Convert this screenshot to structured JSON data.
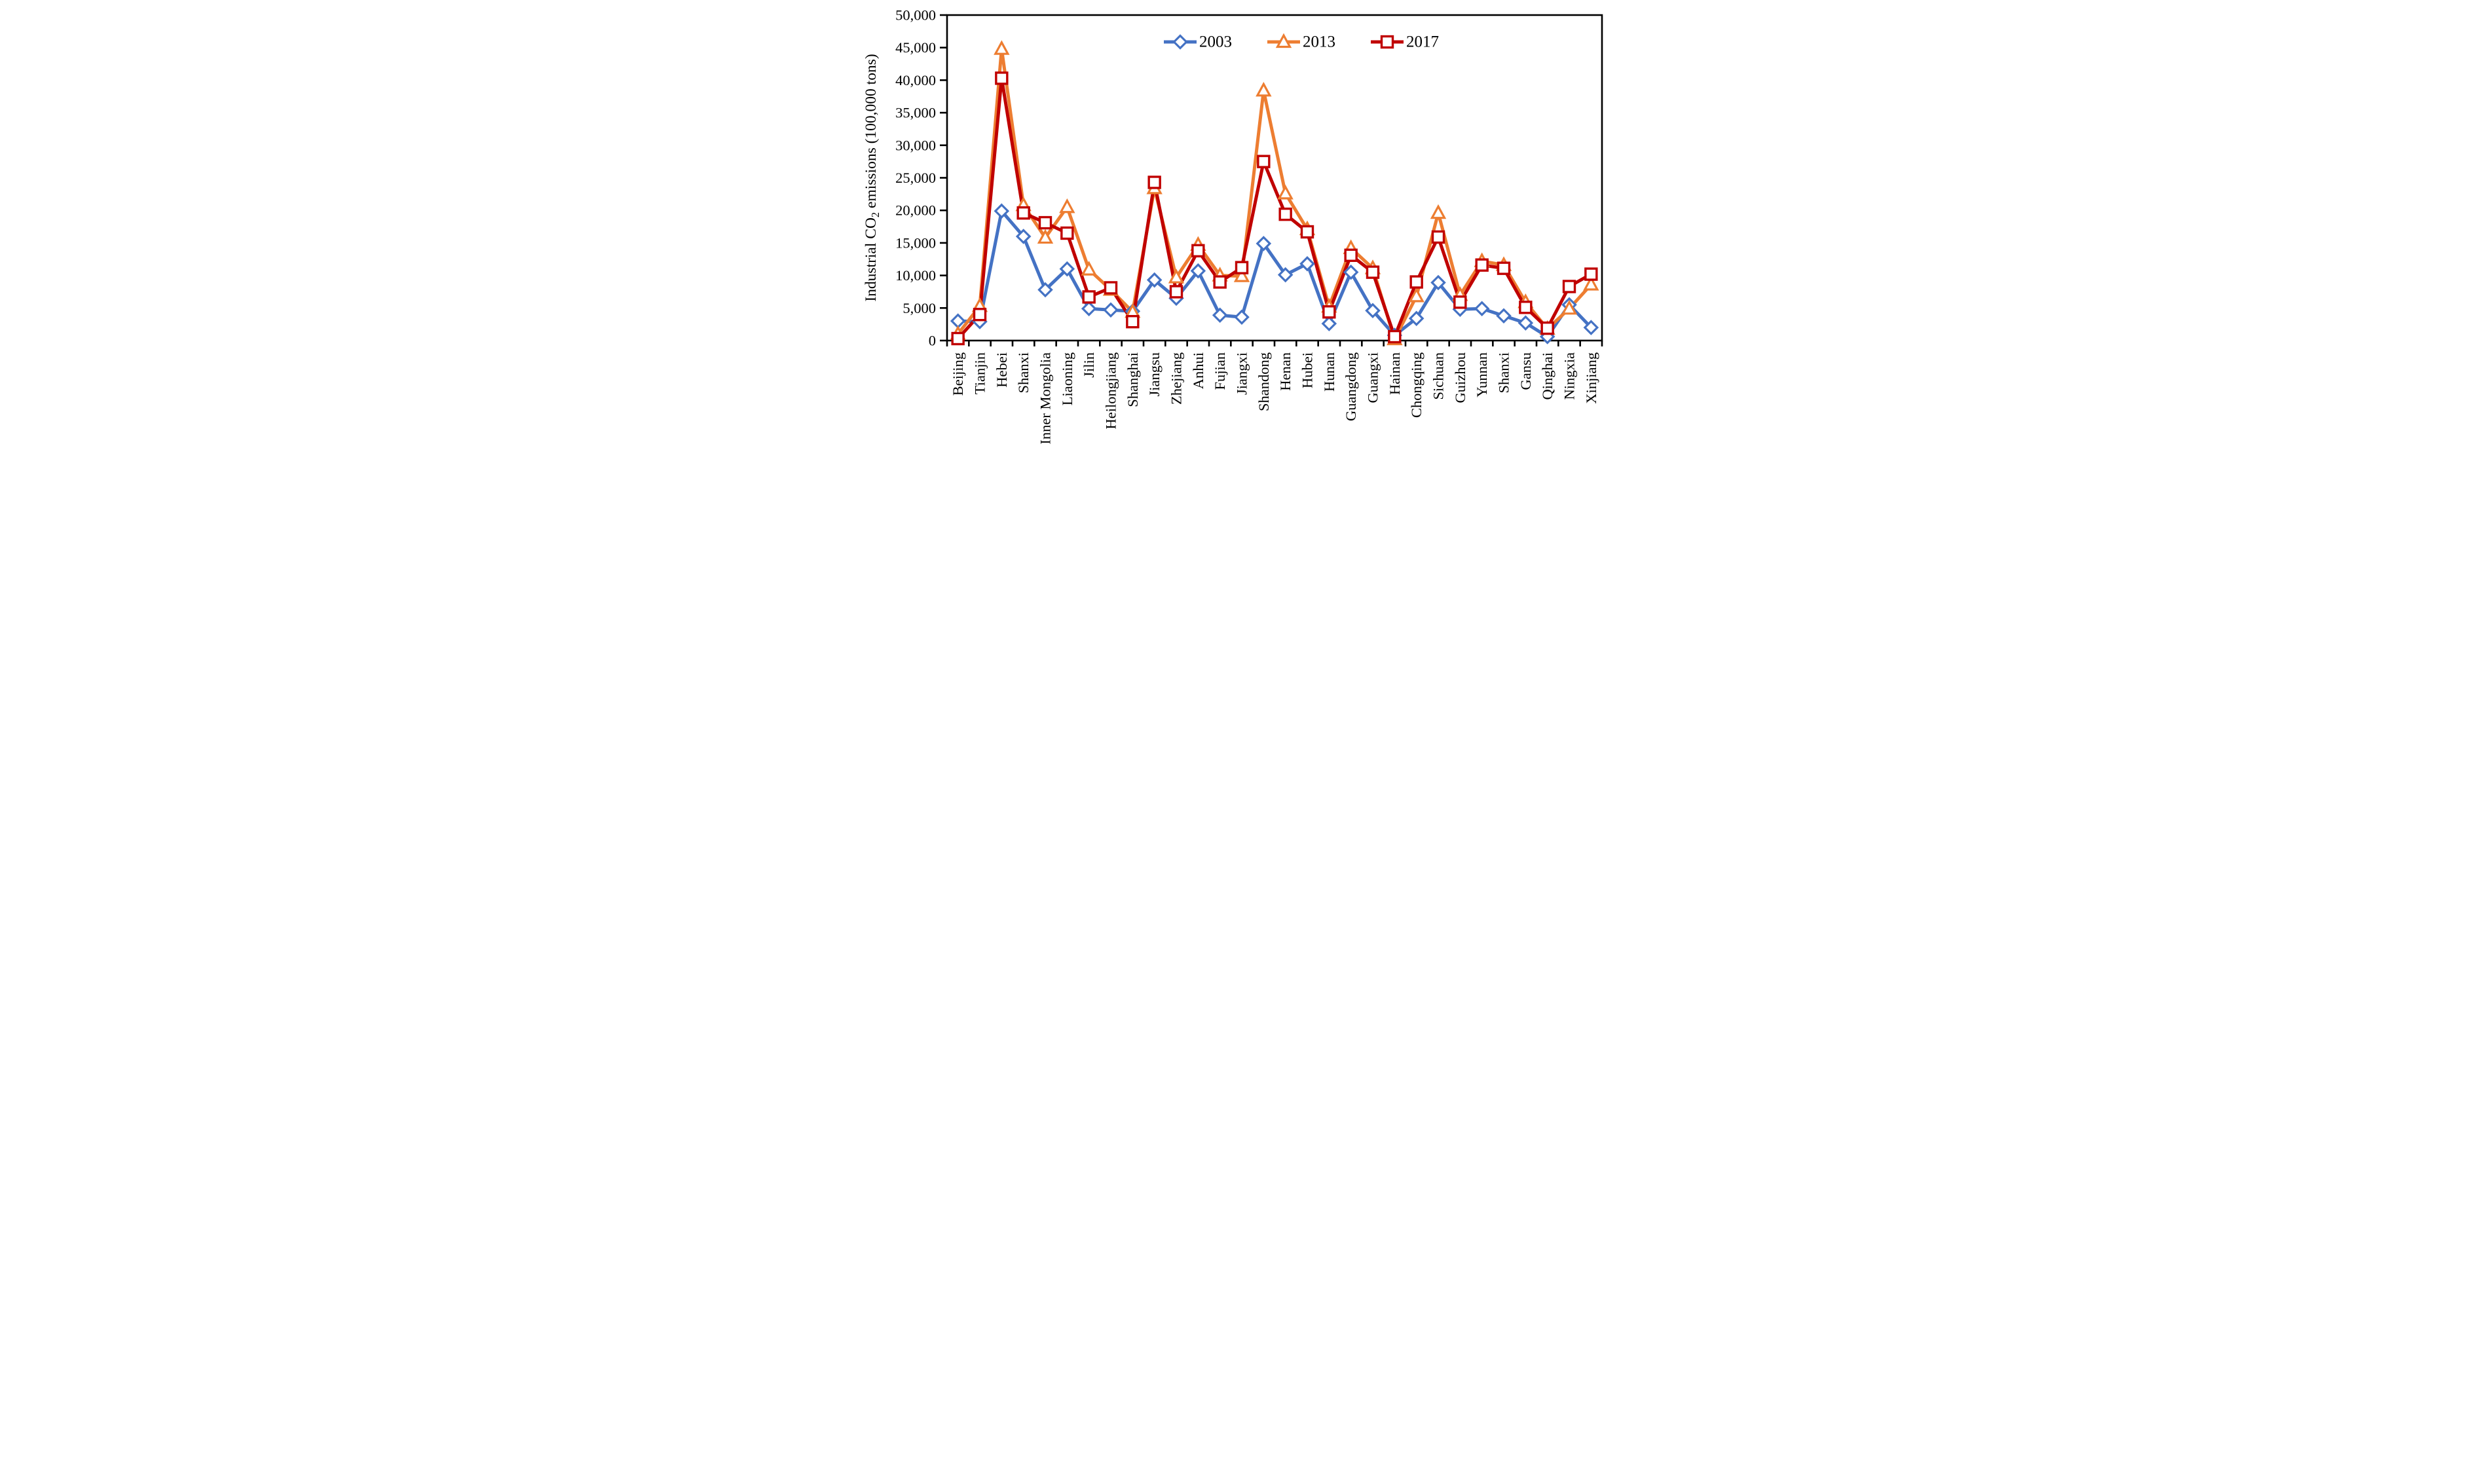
{
  "chart_data": {
    "type": "line",
    "title": "",
    "y_axis_title_parts": {
      "pre": "Industrial CO",
      "sub": "2",
      "post": " emissions (100,000 tons)"
    },
    "ylim": [
      0,
      50000
    ],
    "ytick_step": 5000,
    "y_tick_labels": [
      "0",
      "5,000",
      "10,000",
      "15,000",
      "20,000",
      "25,000",
      "30,000",
      "35,000",
      "40,000",
      "45,000",
      "50,000"
    ],
    "grid": false,
    "legend_position": "top-center",
    "axis_color": "#000000",
    "categories": [
      "Beijing",
      "Tianjin",
      "Hebei",
      "Shanxi",
      "Inner Mongolia",
      "Liaoning",
      "Jilin",
      "Heilongjiang",
      "Shanghai",
      "Jiangsu",
      "Zhejiang",
      "Anhui",
      "Fujian",
      "Jiangxi",
      "Shandong",
      "Henan",
      "Hubei",
      "Hunan",
      "Guangdong",
      "Guangxi",
      "Hainan",
      "Chongqing",
      "Sichuan",
      "Guizhou",
      "Yunnan",
      "Shanxi",
      "Gansu",
      "Qinghai",
      "Ningxia",
      "Xinjiang"
    ],
    "series": [
      {
        "name": "2003",
        "color": "#4472C4",
        "marker": "diamond",
        "values": [
          3000,
          2900,
          19900,
          16000,
          7800,
          11000,
          4900,
          4700,
          4500,
          9300,
          6500,
          10700,
          3900,
          3600,
          14900,
          10100,
          11800,
          2600,
          10500,
          4600,
          800,
          3400,
          8900,
          4800,
          4900,
          3800,
          2700,
          600,
          5500,
          2000
        ]
      },
      {
        "name": "2013",
        "color": "#ED7D31",
        "marker": "triangle",
        "values": [
          1000,
          5300,
          44800,
          20800,
          15800,
          20500,
          10900,
          7800,
          4400,
          23400,
          9700,
          14700,
          10000,
          9900,
          38400,
          22600,
          17100,
          5200,
          14200,
          11100,
          200,
          6800,
          19600,
          7000,
          12200,
          11600,
          5900,
          1800,
          4900,
          8600
        ]
      },
      {
        "name": "2017",
        "color": "#C00000",
        "marker": "square",
        "values": [
          300,
          4000,
          40300,
          19600,
          18100,
          16500,
          6700,
          8100,
          2900,
          24300,
          7500,
          13800,
          9000,
          11200,
          27500,
          19400,
          16700,
          4400,
          13100,
          10500,
          600,
          9000,
          15900,
          5900,
          11600,
          11100,
          5100,
          1900,
          8300,
          10200
        ]
      }
    ]
  }
}
